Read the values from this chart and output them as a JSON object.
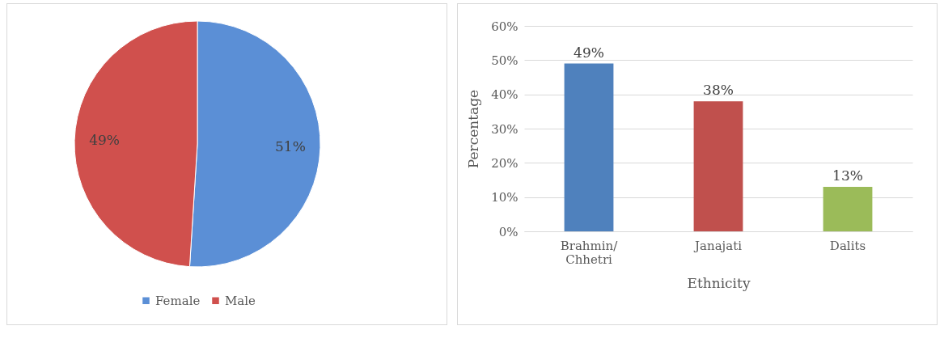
{
  "chart_data": [
    {
      "type": "pie",
      "categories": [
        "Female",
        "Male"
      ],
      "values": [
        51,
        49
      ],
      "colors": [
        "#5b8fd6",
        "#d0504d"
      ],
      "value_labels": [
        "51%",
        "49%"
      ],
      "legend": "bottom"
    },
    {
      "type": "bar",
      "categories": [
        "Brahmin/Chhetri",
        "Janajati",
        "Dalits"
      ],
      "values": [
        49,
        38,
        13
      ],
      "colors": [
        "#4f81bd",
        "#c0504d",
        "#9bbb59"
      ],
      "value_labels": [
        "49%",
        "38%",
        "13%"
      ],
      "xlabel": "Ethnicity",
      "ylabel": "Percentage",
      "ylim": [
        0,
        60
      ],
      "yticks": [
        {
          "value": 0,
          "label": "0%"
        },
        {
          "value": 10,
          "label": "10%"
        },
        {
          "value": 20,
          "label": "20%"
        },
        {
          "value": 30,
          "label": "30%"
        },
        {
          "value": 40,
          "label": "40%"
        },
        {
          "value": 50,
          "label": "50%"
        },
        {
          "value": 60,
          "label": "60%"
        }
      ],
      "grid": true
    }
  ]
}
